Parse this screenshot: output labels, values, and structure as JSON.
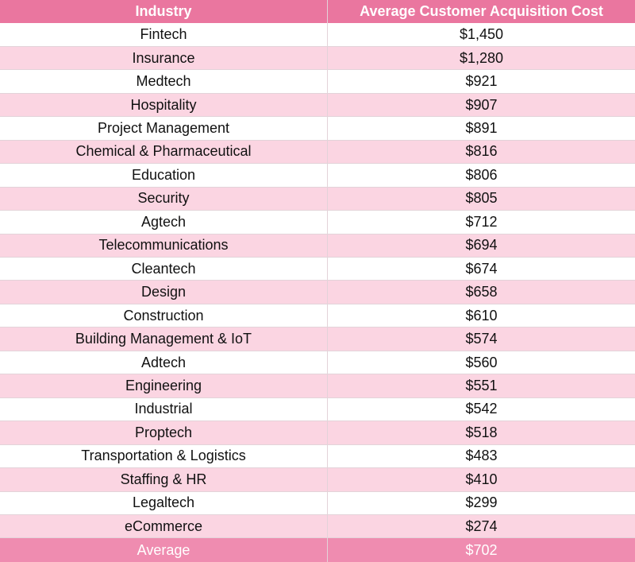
{
  "table": {
    "header": [
      "Industry",
      "Average Customer Acquisition Cost"
    ],
    "rows": [
      [
        "Fintech",
        "$1,450"
      ],
      [
        "Insurance",
        "$1,280"
      ],
      [
        "Medtech",
        "$921"
      ],
      [
        "Hospitality",
        "$907"
      ],
      [
        "Project Management",
        "$891"
      ],
      [
        "Chemical & Pharmaceutical",
        "$816"
      ],
      [
        "Education",
        "$806"
      ],
      [
        "Security",
        "$805"
      ],
      [
        "Agtech",
        "$712"
      ],
      [
        "Telecommunications",
        "$694"
      ],
      [
        "Cleantech",
        "$674"
      ],
      [
        "Design",
        "$658"
      ],
      [
        "Construction",
        "$610"
      ],
      [
        "Building Management & IoT",
        "$574"
      ],
      [
        "Adtech",
        "$560"
      ],
      [
        "Engineering",
        "$551"
      ],
      [
        "Industrial",
        "$542"
      ],
      [
        "Proptech",
        "$518"
      ],
      [
        "Transportation & Logistics",
        "$483"
      ],
      [
        "Staffing & HR",
        "$410"
      ],
      [
        "Legaltech",
        "$299"
      ],
      [
        "eCommerce",
        "$274"
      ]
    ],
    "footer": [
      "Average",
      "$702"
    ]
  }
}
